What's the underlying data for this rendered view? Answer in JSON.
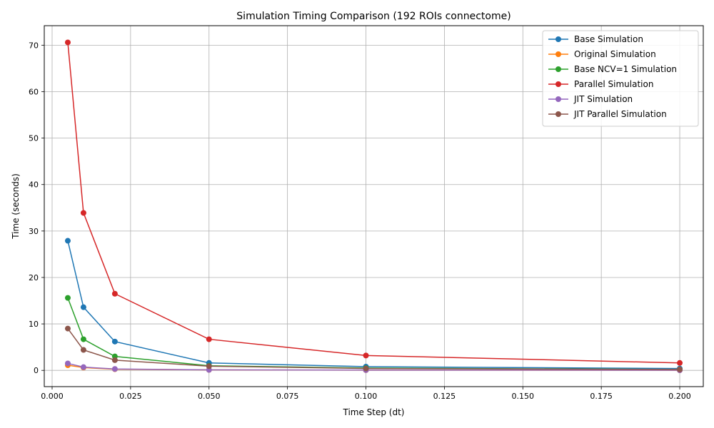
{
  "chart_data": {
    "type": "line",
    "title": "Simulation Timing Comparison (192 ROIs connectome)",
    "xlabel": "Time Step (dt)",
    "ylabel": "Time (seconds)",
    "x": [
      0.005,
      0.01,
      0.02,
      0.05,
      0.1,
      0.2
    ],
    "xlim": [
      -0.0025,
      0.2075
    ],
    "ylim": [
      -3.5,
      74.2
    ],
    "xticks": [
      0.0,
      0.025,
      0.05,
      0.075,
      0.1,
      0.125,
      0.15,
      0.175,
      0.2
    ],
    "xtick_labels": [
      "0.000",
      "0.025",
      "0.050",
      "0.075",
      "0.100",
      "0.125",
      "0.150",
      "0.175",
      "0.200"
    ],
    "yticks": [
      0,
      10,
      20,
      30,
      40,
      50,
      60,
      70
    ],
    "ytick_labels": [
      "0",
      "10",
      "20",
      "30",
      "40",
      "50",
      "60",
      "70"
    ],
    "grid": true,
    "legend_position": "top-right",
    "series": [
      {
        "name": "Base Simulation",
        "color": "#1f77b4",
        "values": [
          27.9,
          13.6,
          6.2,
          1.6,
          0.8,
          0.4
        ]
      },
      {
        "name": "Original Simulation",
        "color": "#ff7f0e",
        "values": [
          1.1,
          0.6,
          0.25,
          0.1,
          0.05,
          0.02
        ]
      },
      {
        "name": "Base NCV=1 Simulation",
        "color": "#2ca02c",
        "values": [
          15.6,
          6.7,
          3.0,
          1.0,
          0.5,
          0.2
        ]
      },
      {
        "name": "Parallel Simulation",
        "color": "#d62728",
        "values": [
          70.6,
          33.9,
          16.5,
          6.7,
          3.2,
          1.6
        ]
      },
      {
        "name": "JIT Simulation",
        "color": "#9467bd",
        "values": [
          1.5,
          0.7,
          0.3,
          0.1,
          0.06,
          0.03
        ]
      },
      {
        "name": "JIT Parallel Simulation",
        "color": "#8c564b",
        "values": [
          9.0,
          4.4,
          2.2,
          0.9,
          0.4,
          0.2
        ]
      }
    ]
  }
}
